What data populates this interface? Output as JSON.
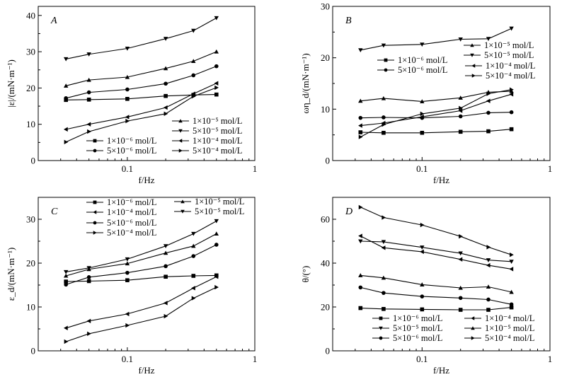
{
  "figure": {
    "description": "Four-panel figure of dilational modulus components vs frequency"
  },
  "chart_data": [
    {
      "type": "line",
      "panel": "A",
      "title": "",
      "xlabel": "f/Hz",
      "ylabel": "|ε|/(mN·m⁻¹)",
      "xscale": "log",
      "xlim": [
        0.02,
        1
      ],
      "ylim": [
        0,
        42.5
      ],
      "xticks": [
        0.1,
        1
      ],
      "xtick_labels": [
        "0.1",
        "1"
      ],
      "yticks": [
        0,
        10,
        20,
        30,
        40
      ],
      "ytick_labels": [
        "0",
        "10",
        "20",
        "30",
        "40"
      ],
      "grid": false,
      "legend_placement": "bottom-right",
      "x": [
        0.033,
        0.05,
        0.1,
        0.2,
        0.33,
        0.5
      ],
      "series": [
        {
          "name": "1×10⁻⁶ mol/L",
          "marker": "square",
          "values": [
            16.7,
            16.8,
            17.0,
            17.8,
            18.1,
            18.2
          ]
        },
        {
          "name": "5×10⁻⁶ mol/L",
          "marker": "circle",
          "values": [
            17.2,
            18.8,
            19.6,
            21.2,
            23.5,
            26.0
          ]
        },
        {
          "name": "1×10⁻⁵ mol/L",
          "marker": "triangle-up",
          "values": [
            20.6,
            22.2,
            23.0,
            25.4,
            27.4,
            30.0
          ]
        },
        {
          "name": "5×10⁻⁵ mol/L",
          "marker": "triangle-down",
          "values": [
            28.0,
            29.3,
            30.9,
            33.6,
            35.8,
            39.3
          ]
        },
        {
          "name": "1×10⁻⁴ mol/L",
          "marker": "triangle-left",
          "values": [
            8.6,
            10.0,
            12.0,
            14.6,
            18.4,
            21.3
          ]
        },
        {
          "name": "5×10⁻⁴ mol/L",
          "marker": "triangle-right",
          "values": [
            5.1,
            8.0,
            10.9,
            12.9,
            17.7,
            20.1
          ]
        }
      ],
      "legend_order": [
        2,
        3,
        0,
        4,
        1,
        5
      ]
    },
    {
      "type": "line",
      "panel": "B",
      "title": "",
      "xlabel": "f/Hz",
      "ylabel": "ωη_d/(mN·m⁻¹)",
      "xscale": "log",
      "xlim": [
        0.02,
        1
      ],
      "ylim": [
        0,
        30
      ],
      "xticks": [
        0.1,
        1
      ],
      "xtick_labels": [
        "0.1",
        "1"
      ],
      "yticks": [
        0,
        10,
        20,
        30
      ],
      "ytick_labels": [
        "0",
        "10",
        "20",
        "30"
      ],
      "grid": false,
      "legend_placement": "center-right",
      "x": [
        0.033,
        0.05,
        0.1,
        0.2,
        0.33,
        0.5
      ],
      "series": [
        {
          "name": "1×10⁻⁶ mol/L",
          "marker": "square",
          "values": [
            5.5,
            5.4,
            5.4,
            5.6,
            5.7,
            6.1
          ]
        },
        {
          "name": "5×10⁻⁶ mol/L",
          "marker": "circle",
          "values": [
            8.3,
            8.4,
            8.3,
            8.6,
            9.3,
            9.4
          ]
        },
        {
          "name": "1×10⁻⁵ mol/L",
          "marker": "triangle-up",
          "values": [
            11.6,
            12.1,
            11.5,
            12.2,
            13.3,
            13.5
          ]
        },
        {
          "name": "5×10⁻⁵ mol/L",
          "marker": "triangle-down",
          "values": [
            21.5,
            22.4,
            22.6,
            23.6,
            23.7,
            25.7
          ]
        },
        {
          "name": "1×10⁻⁴ mol/L",
          "marker": "triangle-left",
          "values": [
            6.8,
            7.3,
            8.5,
            9.7,
            11.6,
            12.9
          ]
        },
        {
          "name": "5×10⁻⁴ mol/L",
          "marker": "triangle-right",
          "values": [
            4.6,
            7.0,
            9.1,
            10.2,
            13.0,
            13.8
          ]
        }
      ],
      "legend_order": [
        2,
        3,
        0,
        4,
        1,
        5
      ]
    },
    {
      "type": "line",
      "panel": "C",
      "title": "",
      "xlabel": "f/Hz",
      "ylabel": "ε_d/(mN·m⁻¹)",
      "xscale": "log",
      "xlim": [
        0.02,
        1
      ],
      "ylim": [
        0,
        35
      ],
      "xticks": [
        0.1,
        1
      ],
      "xtick_labels": [
        "0.1",
        "1"
      ],
      "yticks": [
        0,
        10,
        20,
        30
      ],
      "ytick_labels": [
        "0",
        "10",
        "20",
        "30"
      ],
      "grid": false,
      "legend_placement": "top",
      "x": [
        0.033,
        0.05,
        0.1,
        0.2,
        0.33,
        0.5
      ],
      "series": [
        {
          "name": "1×10⁻⁶ mol/L",
          "marker": "square",
          "values": [
            15.8,
            15.9,
            16.1,
            16.9,
            17.1,
            17.2
          ]
        },
        {
          "name": "5×10⁻⁶ mol/L",
          "marker": "circle",
          "values": [
            15.1,
            16.8,
            17.8,
            19.3,
            21.6,
            24.2
          ]
        },
        {
          "name": "1×10⁻⁵ mol/L",
          "marker": "triangle-up",
          "values": [
            17.1,
            18.6,
            19.9,
            22.3,
            23.9,
            26.7
          ]
        },
        {
          "name": "5×10⁻⁵ mol/L",
          "marker": "triangle-down",
          "values": [
            18.0,
            18.9,
            20.9,
            23.9,
            26.7,
            29.6
          ]
        },
        {
          "name": "1×10⁻⁴ mol/L",
          "marker": "triangle-left",
          "values": [
            5.2,
            6.8,
            8.4,
            10.9,
            14.3,
            16.9
          ]
        },
        {
          "name": "5×10⁻⁴ mol/L",
          "marker": "triangle-right",
          "values": [
            2.1,
            3.9,
            5.8,
            7.9,
            12.0,
            14.5
          ]
        }
      ],
      "legend_order": [
        0,
        4,
        1,
        5,
        2,
        3
      ]
    },
    {
      "type": "line",
      "panel": "D",
      "title": "",
      "xlabel": "f/Hz",
      "ylabel": "θ/(°)",
      "xscale": "log",
      "xlim": [
        0.02,
        1
      ],
      "ylim": [
        0,
        70
      ],
      "xticks": [
        0.1,
        1
      ],
      "xtick_labels": [
        "0.1",
        "1"
      ],
      "yticks": [
        0,
        20,
        40,
        60
      ],
      "ytick_labels": [
        "0",
        "20",
        "40",
        "60"
      ],
      "grid": false,
      "legend_placement": "bottom",
      "x": [
        0.033,
        0.05,
        0.1,
        0.2,
        0.33,
        0.5
      ],
      "series": [
        {
          "name": "1×10⁻⁶ mol/L",
          "marker": "square",
          "values": [
            19.5,
            19.1,
            18.9,
            18.7,
            18.7,
            19.8
          ]
        },
        {
          "name": "5×10⁻⁶ mol/L",
          "marker": "circle",
          "values": [
            28.9,
            26.4,
            24.8,
            24.1,
            23.4,
            21.2
          ]
        },
        {
          "name": "1×10⁻⁵ mol/L",
          "marker": "triangle-up",
          "values": [
            34.4,
            33.3,
            30.2,
            28.7,
            29.2,
            26.8
          ]
        },
        {
          "name": "5×10⁻⁵ mol/L",
          "marker": "triangle-down",
          "values": [
            50.0,
            49.7,
            47.2,
            44.5,
            41.4,
            40.7
          ]
        },
        {
          "name": "1×10⁻⁴ mol/L",
          "marker": "triangle-left",
          "values": [
            52.4,
            47.0,
            45.2,
            41.7,
            39.0,
            37.3
          ]
        },
        {
          "name": "5×10⁻⁴ mol/L",
          "marker": "triangle-right",
          "values": [
            65.5,
            60.8,
            57.4,
            52.2,
            47.3,
            43.8
          ]
        }
      ],
      "legend_order": [
        0,
        3,
        1,
        4,
        2,
        5
      ]
    }
  ]
}
